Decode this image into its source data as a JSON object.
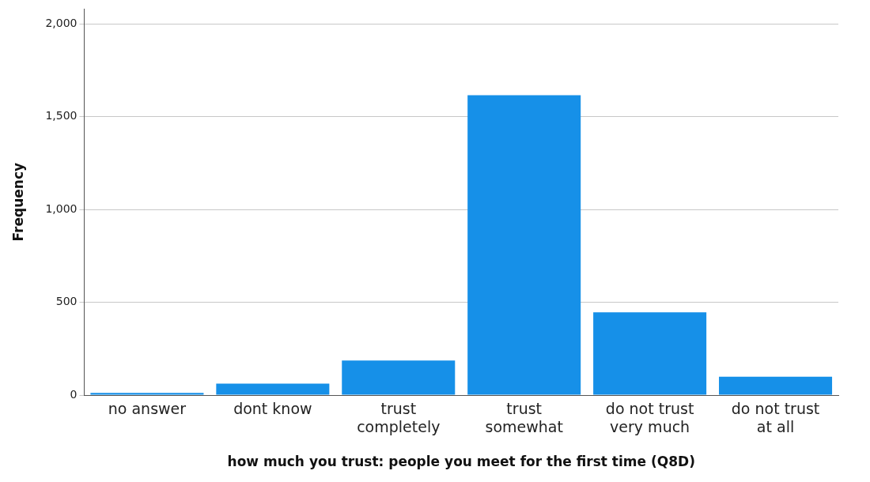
{
  "chart_data": {
    "type": "bar",
    "xlabel": "how much you trust: people you meet for the first time (Q8D)",
    "ylabel": "Frequency",
    "categories": [
      "no answer",
      "dont know",
      "trust completely",
      "trust somewhat",
      "do not trust very much",
      "do not trust at all"
    ],
    "values": [
      12,
      62,
      186,
      1616,
      446,
      99
    ],
    "color": "#1690e8",
    "ylim": [
      0,
      2080
    ],
    "yticks": [
      0,
      {
        "value": 500,
        "label": "500"
      },
      {
        "value": 1000,
        "label": "1,000"
      },
      {
        "value": 1500,
        "label": "1,500"
      },
      {
        "value": 2000,
        "label": "2,000"
      }
    ],
    "grid": "y",
    "legend": false
  }
}
